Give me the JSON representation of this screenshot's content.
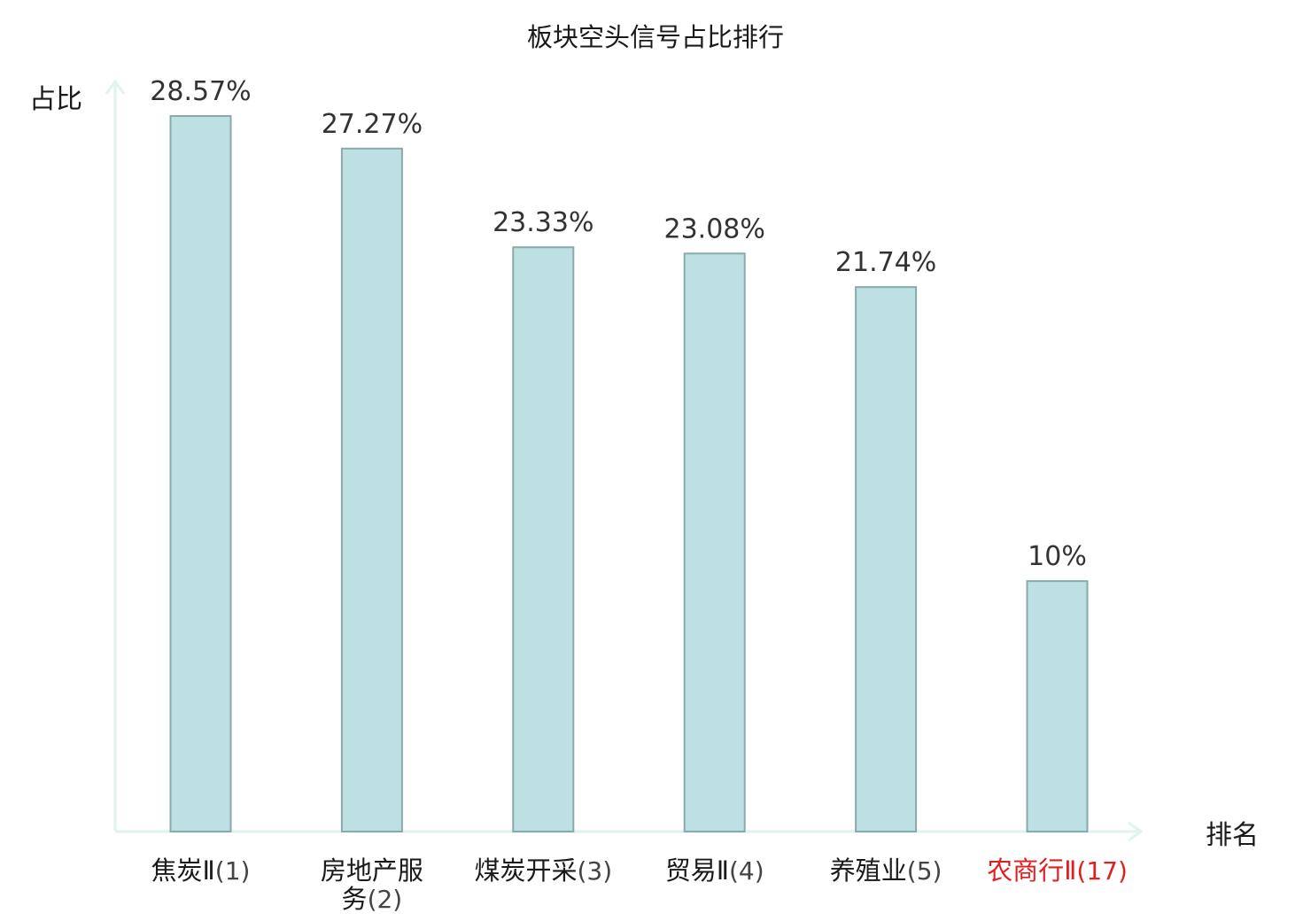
{
  "chart_data": {
    "type": "bar",
    "title": "板块空头信号占比排行",
    "ylabel": "占比",
    "xlabel": "排名",
    "ylim": [
      0,
      28.57
    ],
    "grid": false,
    "categories": [
      {
        "name": "焦炭Ⅱ",
        "rank": "(1)",
        "highlight": false
      },
      {
        "name": "房地产服务",
        "rank": "(2)",
        "highlight": false
      },
      {
        "name": "煤炭开采",
        "rank": "(3)",
        "highlight": false
      },
      {
        "name": "贸易Ⅱ",
        "rank": "(4)",
        "highlight": false
      },
      {
        "name": "养殖业",
        "rank": "(5)",
        "highlight": false
      },
      {
        "name": "农商行Ⅱ",
        "rank": "(17)",
        "highlight": true
      }
    ],
    "values": [
      28.57,
      27.27,
      23.33,
      23.08,
      21.74,
      10
    ],
    "value_labels": [
      "28.57%",
      "27.27%",
      "23.33%",
      "23.08%",
      "21.74%",
      "10%"
    ],
    "colors": {
      "bar_fill": "#bde1e3",
      "bar_stroke": "#8aa9aa",
      "axis": "#e1f2ef",
      "highlight_text": "#e02020",
      "normal_text": "#1a1a1a",
      "rank_text": "#444444"
    }
  }
}
